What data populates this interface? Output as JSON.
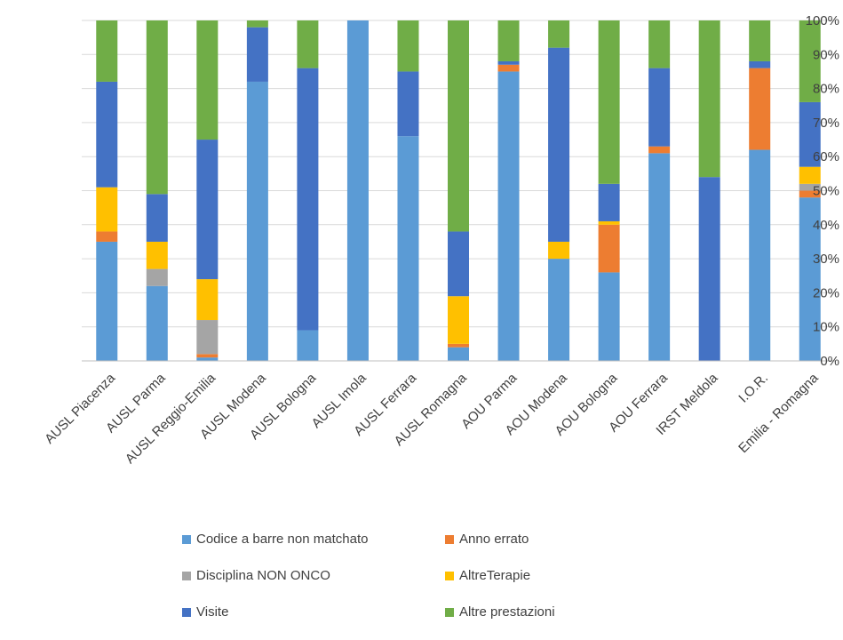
{
  "chart_data": {
    "type": "bar",
    "stacked": true,
    "normalized": true,
    "categories": [
      "AUSL Piacenza",
      "AUSL Parma",
      "AUSL Reggio-Emilia",
      "AUSL Modena",
      "AUSL Bologna",
      "AUSL Imola",
      "AUSL Ferrara",
      "AUSL Romagna",
      "AOU Parma",
      "AOU Modena",
      "AOU Bologna",
      "AOU Ferrara",
      "IRST Meldola",
      "I.O.R.",
      "Emilia - Romagna"
    ],
    "series": [
      {
        "name": "Codice a barre non matchato",
        "color": "#5b9bd5",
        "values": [
          35,
          22,
          1,
          82,
          9,
          100,
          66,
          4,
          85,
          30,
          26,
          61,
          0,
          62,
          48
        ]
      },
      {
        "name": "Anno errato",
        "color": "#ed7d31",
        "values": [
          3,
          0,
          1,
          0,
          0,
          0,
          0,
          1,
          2,
          0,
          14,
          2,
          0,
          24,
          2
        ]
      },
      {
        "name": "Disciplina NON ONCO",
        "color": "#a5a5a5",
        "values": [
          0,
          5,
          10,
          0,
          0,
          0,
          0,
          0,
          0,
          0,
          0,
          0,
          0,
          0,
          2
        ]
      },
      {
        "name": "AltreTerapie",
        "color": "#ffc000",
        "values": [
          13,
          8,
          12,
          0,
          0,
          0,
          0,
          14,
          0,
          5,
          1,
          0,
          0,
          0,
          5
        ]
      },
      {
        "name": "Visite",
        "color": "#4472c4",
        "values": [
          31,
          14,
          41,
          16,
          77,
          0,
          19,
          19,
          1,
          57,
          11,
          23,
          54,
          2,
          19
        ]
      },
      {
        "name": "Altre prestazioni",
        "color": "#70ad47",
        "values": [
          18,
          51,
          35,
          2,
          14,
          0,
          15,
          62,
          12,
          8,
          48,
          14,
          46,
          12,
          24
        ]
      }
    ],
    "y_ticks": [
      "0%",
      "10%",
      "20%",
      "30%",
      "40%",
      "50%",
      "60%",
      "70%",
      "80%",
      "90%",
      "100%"
    ],
    "ylim": [
      0,
      100
    ],
    "y_axis_position": "right",
    "grid": true,
    "legend_position": "bottom"
  }
}
